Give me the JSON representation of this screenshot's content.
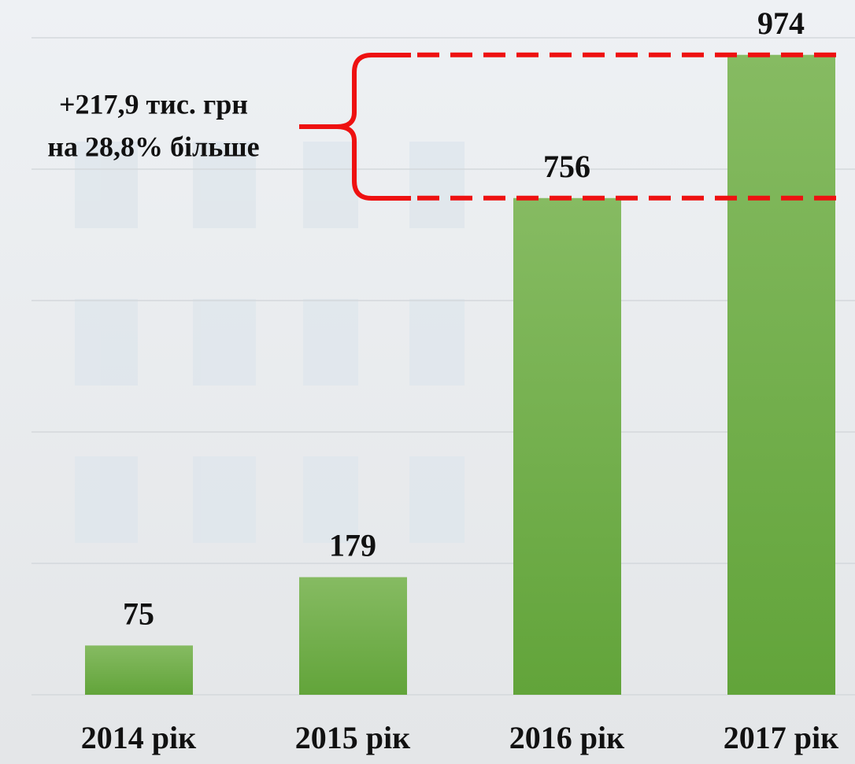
{
  "chart_data": {
    "type": "bar",
    "categories": [
      "2014 рік",
      "2015 рік",
      "2016 рік",
      "2017 рік"
    ],
    "values": [
      75,
      179,
      756,
      974
    ],
    "color": "#6aab40",
    "ylim": [
      0,
      1000
    ],
    "yticks": [
      0,
      200,
      400,
      600,
      800,
      1000
    ],
    "grid": true,
    "annotations": [
      "+217,9 тис. грн",
      "на 28,8% більше"
    ],
    "annotation_color": "#ee1111"
  }
}
